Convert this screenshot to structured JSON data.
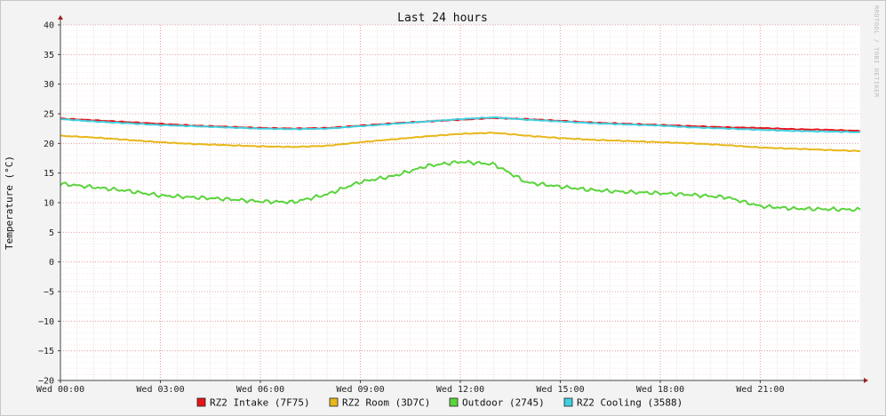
{
  "chart_data": {
    "type": "line",
    "title": "Last 24 hours",
    "ylabel": "Temperature (°C)",
    "watermark": "RRDTOOL / TOBI OETIKER",
    "ylim": [
      -20,
      40
    ],
    "yticks": [
      40,
      35,
      30,
      25,
      20,
      15,
      10,
      5,
      0,
      -5,
      -10,
      -15,
      -20
    ],
    "xlim": [
      0,
      24
    ],
    "xticks": [
      {
        "value": 0,
        "label": "Wed 00:00"
      },
      {
        "value": 3,
        "label": "Wed 03:00"
      },
      {
        "value": 6,
        "label": "Wed 06:00"
      },
      {
        "value": 9,
        "label": "Wed 09:00"
      },
      {
        "value": 12,
        "label": "Wed 12:00"
      },
      {
        "value": 15,
        "label": "Wed 15:00"
      },
      {
        "value": 18,
        "label": "Wed 18:00"
      },
      {
        "value": 21,
        "label": "Wed 21:00"
      }
    ],
    "grid": true,
    "legend_position": "bottom",
    "series": [
      {
        "name": "RZ2 Intake (7F75)",
        "color": "#e8141a",
        "x": [
          0,
          1,
          2,
          3,
          4,
          5,
          6,
          7,
          8,
          9,
          10,
          11,
          12,
          13,
          14,
          15,
          16,
          17,
          18,
          19,
          20,
          21,
          22,
          23,
          24
        ],
        "values": [
          24.2,
          23.9,
          23.6,
          23.3,
          23.0,
          22.8,
          22.6,
          22.5,
          22.6,
          23.0,
          23.4,
          23.7,
          24.0,
          24.3,
          24.1,
          23.8,
          23.5,
          23.3,
          23.1,
          22.9,
          22.7,
          22.6,
          22.4,
          22.3,
          22.1
        ]
      },
      {
        "name": "RZ2 Room (3D7C)",
        "color": "#e8b71a",
        "x": [
          0,
          1,
          2,
          3,
          4,
          5,
          6,
          7,
          8,
          9,
          10,
          11,
          12,
          13,
          14,
          15,
          16,
          17,
          18,
          19,
          20,
          21,
          22,
          23,
          24
        ],
        "values": [
          21.3,
          21.0,
          20.6,
          20.2,
          19.9,
          19.7,
          19.5,
          19.4,
          19.6,
          20.2,
          20.7,
          21.2,
          21.6,
          21.8,
          21.3,
          20.9,
          20.6,
          20.4,
          20.2,
          20.0,
          19.7,
          19.3,
          19.1,
          18.9,
          18.7
        ]
      },
      {
        "name": "Outdoor (2745)",
        "color": "#5ad43c",
        "x": [
          0,
          1,
          2,
          3,
          4,
          5,
          6,
          7,
          8,
          9,
          10,
          11,
          12,
          13,
          14,
          15,
          16,
          17,
          18,
          19,
          20,
          21,
          22,
          23,
          24
        ],
        "values": [
          13.2,
          12.6,
          12.0,
          11.2,
          10.9,
          10.6,
          10.2,
          10.1,
          11.4,
          13.5,
          14.5,
          16.2,
          16.9,
          16.5,
          13.4,
          12.7,
          12.1,
          11.8,
          11.6,
          11.3,
          10.9,
          9.4,
          9.0,
          8.9,
          8.8
        ]
      },
      {
        "name": "RZ2 Cooling (3588)",
        "color": "#40d0e0",
        "x": [
          0,
          1,
          2,
          3,
          4,
          5,
          6,
          7,
          8,
          9,
          10,
          11,
          12,
          13,
          14,
          15,
          16,
          17,
          18,
          19,
          20,
          21,
          22,
          23,
          24
        ],
        "values": [
          24.1,
          23.7,
          23.4,
          23.1,
          22.9,
          22.7,
          22.5,
          22.4,
          22.5,
          22.9,
          23.3,
          23.7,
          24.1,
          24.4,
          24.0,
          23.7,
          23.4,
          23.2,
          23.0,
          22.7,
          22.5,
          22.3,
          22.1,
          22.0,
          21.9
        ]
      }
    ]
  }
}
